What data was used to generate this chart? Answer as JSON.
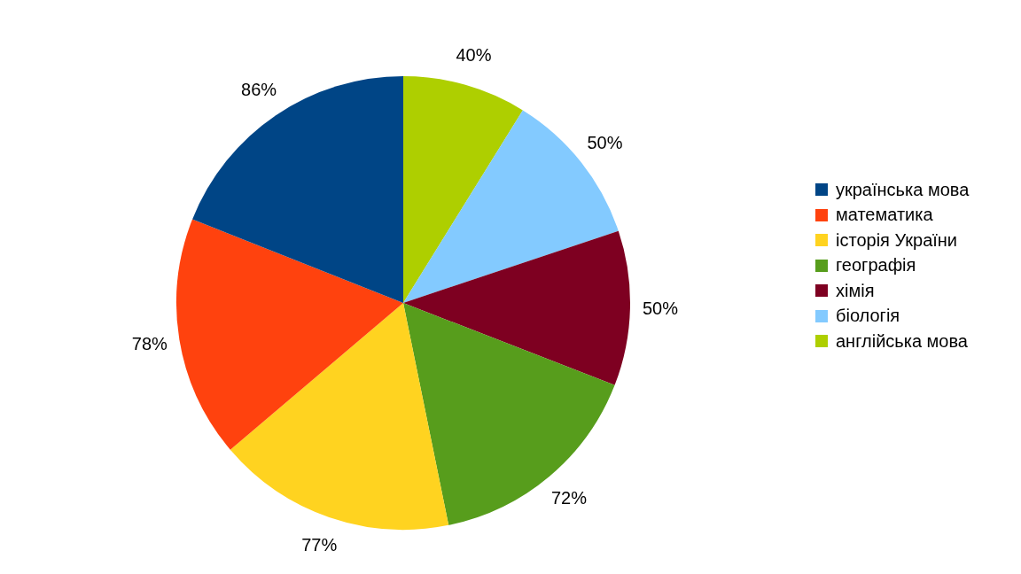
{
  "chart_data": {
    "type": "pie",
    "categories": [
      "українська мова",
      "математика",
      "історія України",
      "географія",
      "хімія",
      "біологія",
      "англійська мова"
    ],
    "values": [
      86,
      78,
      77,
      72,
      50,
      50,
      40
    ],
    "value_labels": [
      "86%",
      "78%",
      "77%",
      "72%",
      "50%",
      "50%",
      "40%"
    ],
    "colors": [
      "#004586",
      "#ff420e",
      "#ffd320",
      "#579d1c",
      "#7e0021",
      "#83caff",
      "#aecf00"
    ],
    "legend": "right"
  }
}
